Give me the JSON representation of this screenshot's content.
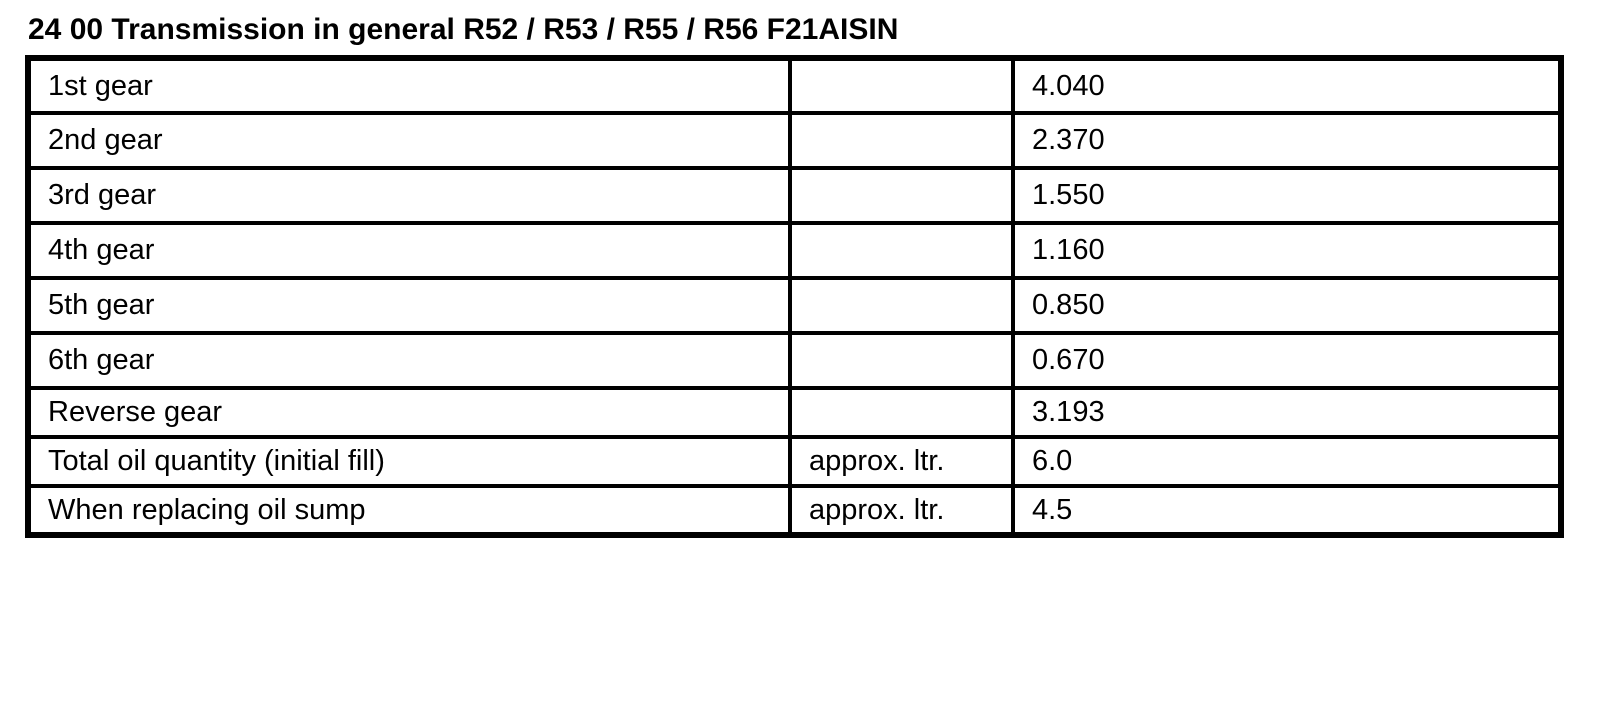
{
  "document": {
    "title": "24 00 Transmission in general R52 / R53 / R55 / R56 F21AISIN"
  },
  "table": {
    "rows": [
      {
        "label": "1st gear",
        "unit": "",
        "value": "4.040"
      },
      {
        "label": "2nd gear",
        "unit": "",
        "value": "2.370"
      },
      {
        "label": "3rd gear",
        "unit": "",
        "value": "1.550"
      },
      {
        "label": "4th gear",
        "unit": "",
        "value": "1.160"
      },
      {
        "label": "5th gear",
        "unit": "",
        "value": "0.850"
      },
      {
        "label": "6th gear",
        "unit": "",
        "value": "0.670"
      },
      {
        "label": "Reverse gear",
        "unit": "",
        "value": "3.193"
      },
      {
        "label": "Total oil quantity (initial fill)",
        "unit": "approx. ltr.",
        "value": "6.0"
      },
      {
        "label": "When replacing oil sump",
        "unit": "approx. ltr.",
        "value": "4.5"
      }
    ]
  }
}
